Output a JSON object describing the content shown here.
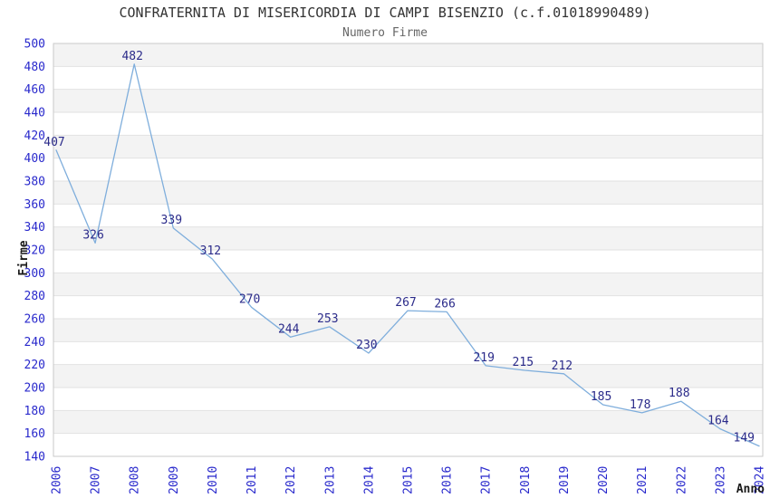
{
  "header": {
    "title": "CONFRATERNITA DI MISERICORDIA DI CAMPI BISENZIO (c.f.01018990489)",
    "subtitle": "Numero Firme"
  },
  "chart_data": {
    "type": "line",
    "title": "CONFRATERNITA DI MISERICORDIA DI CAMPI BISENZIO (c.f.01018990489)",
    "subtitle": "Numero Firme",
    "xlabel": "Anno",
    "ylabel": "Firme",
    "categories": [
      "2006",
      "2007",
      "2008",
      "2009",
      "2010",
      "2011",
      "2012",
      "2013",
      "2014",
      "2015",
      "2016",
      "2017",
      "2018",
      "2019",
      "2020",
      "2021",
      "2022",
      "2023",
      "2024"
    ],
    "values": [
      407,
      326,
      482,
      339,
      312,
      270,
      244,
      253,
      230,
      267,
      266,
      219,
      215,
      212,
      185,
      178,
      188,
      164,
      149
    ],
    "ylim": [
      140,
      500
    ],
    "ytick_step": 20,
    "grid": true,
    "banded_background": true,
    "legend_position": "none",
    "point_labels_visible": true,
    "x_tick_rotation_degrees": 90
  },
  "colors": {
    "line": "#7FAEDC",
    "data_label": "#2B2B8A",
    "tick_label": "#2929CC",
    "band_fill": "#F3F3F3",
    "gridline": "#E2E2E2",
    "frame": "#C9C9C9",
    "title": "#333333",
    "subtitle": "#666666",
    "axis_title": "#1A1A1A",
    "background": "#FFFFFF"
  }
}
